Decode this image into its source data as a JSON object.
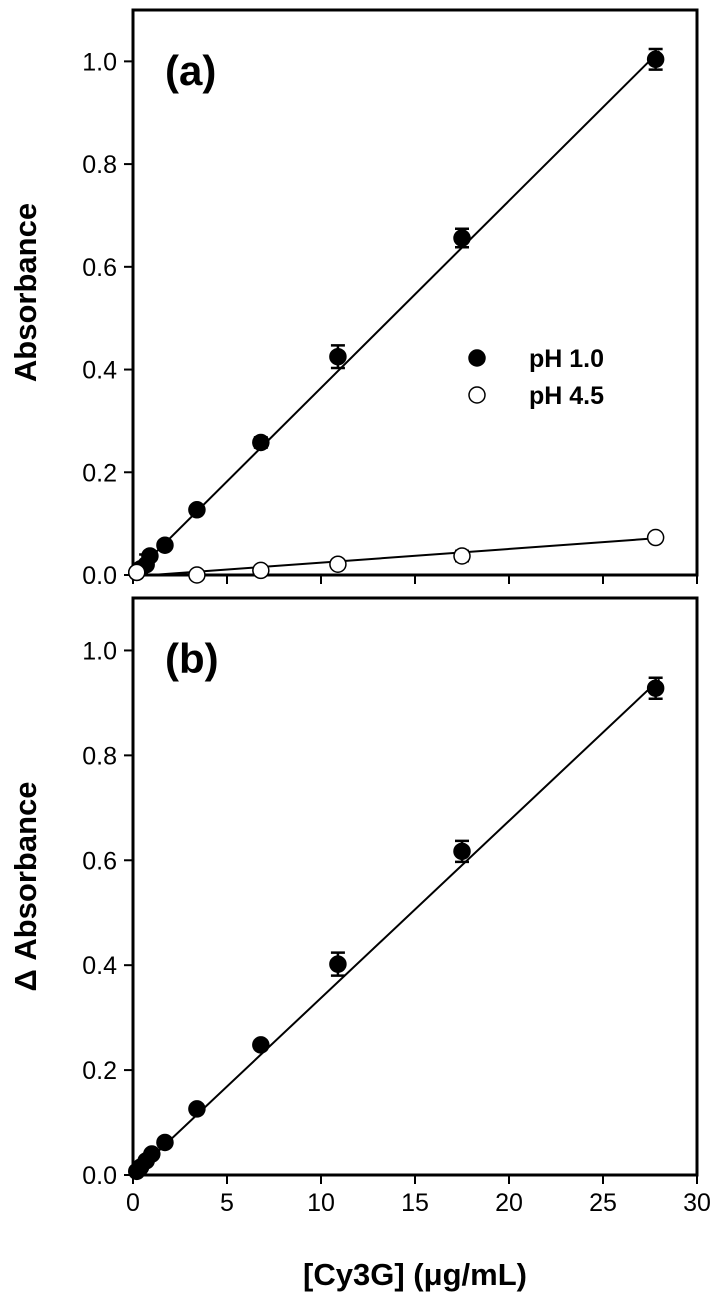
{
  "chart_data": [
    {
      "type": "scatter",
      "panel_label": "(a)",
      "y_label": "Absorbance",
      "xlim": [
        0,
        30
      ],
      "xticks": [
        0,
        5,
        10,
        15,
        20,
        25,
        30
      ],
      "ylim": [
        0,
        1.1
      ],
      "yticks": [
        {
          "value": 0,
          "label": "0.0"
        },
        0.2,
        0.4,
        0.6,
        0.8,
        {
          "value": 1,
          "label": "1.0"
        }
      ],
      "legend": "right",
      "series": [
        {
          "name": "pH 1.0",
          "color": "#000000",
          "marker": "filled",
          "x": [
            0.2,
            0.4,
            0.7,
            0.9,
            1.7,
            3.4,
            6.8,
            10.9,
            17.5,
            27.8
          ],
          "values": [
            0.005,
            0.012,
            0.02,
            0.037,
            0.058,
            0.127,
            0.258,
            0.425,
            0.656,
            1.004
          ],
          "errors": [
            0.003,
            0.004,
            0.02,
            0.005,
            0.005,
            0.006,
            0.01,
            0.022,
            0.018,
            0.02
          ],
          "fit": {
            "x": [
              0,
              28
            ],
            "values": [
              0,
              1.02
            ]
          }
        },
        {
          "name": "pH 4.5",
          "color": "#000000",
          "marker": "open",
          "x": [
            0.2,
            3.4,
            6.8,
            10.9,
            17.5,
            27.8
          ],
          "values": [
            0.005,
            0,
            0.009,
            0.021,
            0.037,
            0.073
          ],
          "errors": [
            0.002,
            0.002,
            0.003,
            0.004,
            0.01,
            0.006
          ],
          "fit": {
            "x": [
              1,
              28
            ],
            "values": [
              0,
              0.072
            ]
          }
        }
      ]
    },
    {
      "type": "scatter",
      "panel_label": "(b)",
      "y_label": "Δ Absorbance",
      "x_label": "[Cy3G] (μg/mL)",
      "xlim": [
        0,
        30
      ],
      "xticks": [
        0,
        5,
        10,
        15,
        20,
        25,
        30
      ],
      "ylim": [
        0,
        1.1
      ],
      "yticks": [
        {
          "value": 0,
          "label": "0.0"
        },
        0.2,
        0.4,
        0.6,
        0.8,
        {
          "value": 1,
          "label": "1.0"
        }
      ],
      "series": [
        {
          "color": "#000000",
          "marker": "filled",
          "x": [
            0.2,
            0.4,
            0.7,
            1.0,
            1.7,
            3.4,
            6.8,
            10.9,
            17.5,
            27.8
          ],
          "values": [
            0.007,
            0.015,
            0.027,
            0.04,
            0.062,
            0.126,
            0.248,
            0.402,
            0.617,
            0.928
          ],
          "errors": [
            0.003,
            0.004,
            0.005,
            0.006,
            0.006,
            0.008,
            0.008,
            0.022,
            0.02,
            0.02
          ],
          "fit": {
            "x": [
              0,
              28
            ],
            "values": [
              0,
              0.945
            ]
          }
        }
      ]
    }
  ]
}
